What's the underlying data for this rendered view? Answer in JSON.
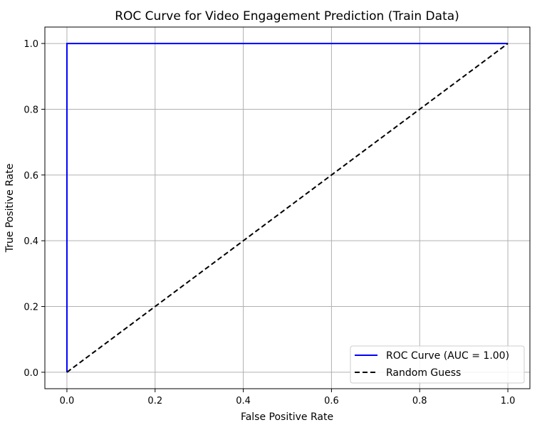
{
  "chart_data": {
    "type": "line",
    "title": "ROC Curve for Video Engagement Prediction (Train Data)",
    "xlabel": "False Positive Rate",
    "ylabel": "True Positive Rate",
    "xlim": [
      -0.05,
      1.05
    ],
    "ylim": [
      -0.05,
      1.05
    ],
    "x_ticks": [
      0.0,
      0.2,
      0.4,
      0.6,
      0.8,
      1.0
    ],
    "x_tick_labels": [
      "0.0",
      "0.2",
      "0.4",
      "0.6",
      "0.8",
      "1.0"
    ],
    "y_ticks": [
      0.0,
      0.2,
      0.4,
      0.6,
      0.8,
      1.0
    ],
    "y_tick_labels": [
      "0.0",
      "0.2",
      "0.4",
      "0.6",
      "0.8",
      "1.0"
    ],
    "grid": true,
    "legend_position": "lower-right",
    "series": [
      {
        "name": "ROC Curve (AUC = 1.00)",
        "color": "#0000ff",
        "dash": "solid",
        "x": [
          0.0,
          0.0,
          1.0
        ],
        "y": [
          0.0,
          1.0,
          1.0
        ]
      },
      {
        "name": "Random Guess",
        "color": "#000000",
        "dash": "dashed",
        "x": [
          0.0,
          1.0
        ],
        "y": [
          0.0,
          1.0
        ]
      }
    ]
  }
}
